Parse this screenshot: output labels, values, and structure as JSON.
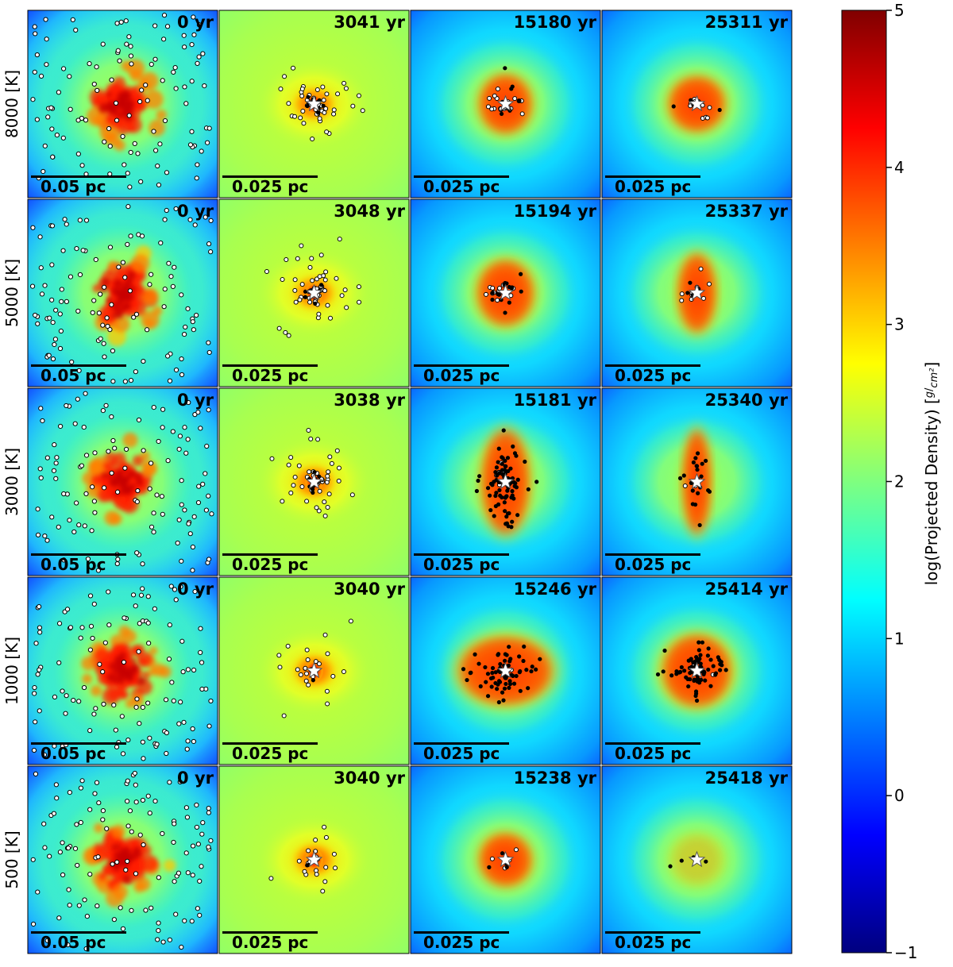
{
  "chart_data": {
    "type": "heatmap",
    "title": "",
    "quantity": "log(Projected Density)",
    "row_labels": [
      "8000 [K]",
      "5000 [K]",
      "3000 [K]",
      "1000 [K]",
      "500 [K]"
    ],
    "panel_times": [
      [
        "0 yr",
        "3041 yr",
        "15180 yr",
        "25311 yr"
      ],
      [
        "0 yr",
        "3048 yr",
        "15194 yr",
        "25337 yr"
      ],
      [
        "0 yr",
        "3038 yr",
        "15181 yr",
        "25340 yr"
      ],
      [
        "0 yr",
        "3040 yr",
        "15246 yr",
        "25414 yr"
      ],
      [
        "0 yr",
        "3040 yr",
        "15238 yr",
        "25418 yr"
      ]
    ],
    "scale_bars": [
      "0.05 pc",
      "0.025 pc",
      "0.025 pc",
      "0.025 pc"
    ],
    "colorbar": {
      "label_prefix": "log(Projected Density) [",
      "unit_num": "g",
      "unit_den": "cm²",
      "label_suffix": "]",
      "range": [
        -1,
        5
      ],
      "ticks": [
        "5",
        "4",
        "3",
        "2",
        "1",
        "0",
        "−1"
      ],
      "colormap": "jet"
    },
    "markers": {
      "open_circle": "sink particle (white, black edge)",
      "filled_circle": "sink particle (black)",
      "star": "central star (white)"
    }
  },
  "colors": {
    "dark_red": "#800000",
    "red": "#ff0000",
    "orange": "#ff8000",
    "yellow": "#ffff00",
    "cyan": "#00ffff",
    "blue": "#0000ff",
    "navy": "#00007f"
  }
}
